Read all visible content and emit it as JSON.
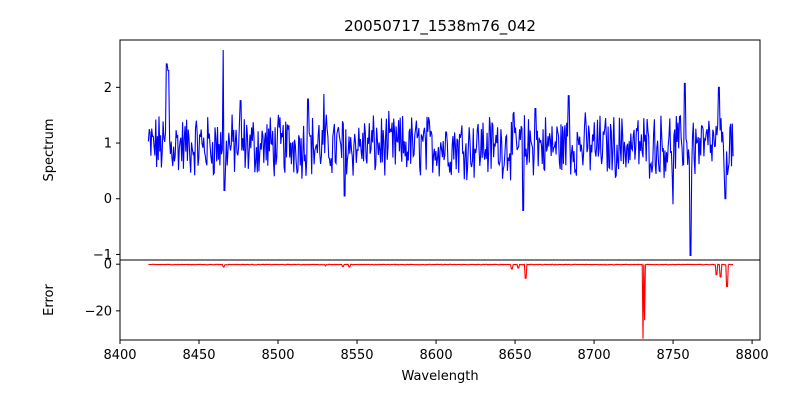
{
  "chart_data": [
    {
      "type": "line",
      "title": "20050717_1538m76_042",
      "xlabel": "",
      "ylabel": "Spectrum",
      "xlim": [
        8400,
        8805
      ],
      "ylim": [
        -1.1,
        2.85
      ],
      "y_ticks": [
        -1,
        0,
        1,
        2
      ],
      "grid": false,
      "series": [
        {
          "color": "#0000ff",
          "x_range": [
            8418,
            8788
          ],
          "description_values": {
            "baseline_mean": 0.95,
            "peaks": [
              {
                "x": 8429.6,
                "y": 2.42
              },
              {
                "x": 8430.6,
                "y": 2.3
              },
              {
                "x": 8465.5,
                "y": 2.67
              },
              {
                "x": 8476.5,
                "y": 1.76
              },
              {
                "x": 8518.8,
                "y": 1.79
              },
              {
                "x": 8529.0,
                "y": 1.88
              },
              {
                "x": 8663.0,
                "y": 1.62
              },
              {
                "x": 8684.0,
                "y": 1.85
              },
              {
                "x": 8757.6,
                "y": 2.07
              },
              {
                "x": 8779.0,
                "y": 2.0
              }
            ],
            "dips": [
              {
                "x": 8466.0,
                "y": 0.15
              },
              {
                "x": 8542.0,
                "y": 0.05
              },
              {
                "x": 8655.0,
                "y": -0.21
              },
              {
                "x": 8750.0,
                "y": -0.1
              },
              {
                "x": 8761.0,
                "y": -1.02
              },
              {
                "x": 8783.0,
                "y": 0.0
              }
            ]
          }
        }
      ]
    },
    {
      "type": "line",
      "title": "",
      "xlabel": "Wavelength",
      "ylabel": "Error",
      "xlim": [
        8400,
        8805
      ],
      "ylim": [
        -32.5,
        1.8
      ],
      "x_ticks": [
        8400,
        8450,
        8500,
        8550,
        8600,
        8650,
        8700,
        8750,
        8800
      ],
      "y_ticks": [
        -20,
        0
      ],
      "grid": false,
      "series": [
        {
          "color": "#ff0000",
          "x_range": [
            8418,
            8788
          ],
          "description_values": {
            "baseline": -0.15,
            "dips": [
              {
                "x": 8465.5,
                "y": -1.2
              },
              {
                "x": 8530.0,
                "y": -0.7
              },
              {
                "x": 8541.0,
                "y": -1.0
              },
              {
                "x": 8545.0,
                "y": -1.2
              },
              {
                "x": 8648.0,
                "y": -2.0
              },
              {
                "x": 8652.0,
                "y": -1.6
              },
              {
                "x": 8656.6,
                "y": -6.0
              },
              {
                "x": 8731.0,
                "y": -32.0
              },
              {
                "x": 8732.0,
                "y": -24.0
              },
              {
                "x": 8777.5,
                "y": -4.5
              },
              {
                "x": 8780.0,
                "y": -5.5
              },
              {
                "x": 8784.0,
                "y": -9.5
              }
            ]
          }
        }
      ]
    }
  ]
}
